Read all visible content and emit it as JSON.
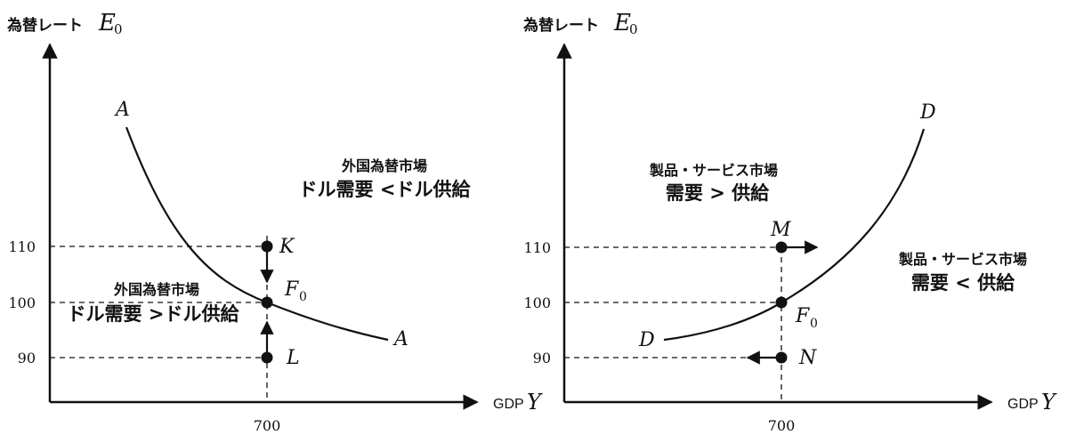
{
  "colors": {
    "ink": "#111111",
    "background": "#ffffff"
  },
  "left_panel": {
    "y_axis_label": "為替レート",
    "y_axis_symbol": "E",
    "y_axis_subscript": "0",
    "x_axis_label": "GDP",
    "x_axis_symbol": "Y",
    "ticks_y": [
      "110",
      "100",
      "90"
    ],
    "tick_x": "700",
    "curve_label_top": "A",
    "curve_label_bottom": "A",
    "point_K": "K",
    "point_L": "L",
    "point_F": "F",
    "point_F_subscript": "0",
    "upper_region": {
      "title": "外国為替市場",
      "text": "ドル需要 <ドル供給"
    },
    "lower_region": {
      "title": "外国為替市場",
      "text": "ドル需要 >ドル供給"
    }
  },
  "right_panel": {
    "y_axis_label": "為替レート",
    "y_axis_symbol": "E",
    "y_axis_subscript": "0",
    "x_axis_label": "GDP",
    "x_axis_symbol": "Y",
    "ticks_y": [
      "110",
      "100",
      "90"
    ],
    "tick_x": "700",
    "curve_label_top": "D",
    "curve_label_bottom": "D",
    "point_M": "M",
    "point_N": "N",
    "point_F": "F",
    "point_F_subscript": "0",
    "upper_region": {
      "title": "製品・サービス市場",
      "text": "需要 > 供給"
    },
    "lower_region": {
      "title": "製品・サービス市場",
      "text": "需要 < 供給"
    }
  }
}
